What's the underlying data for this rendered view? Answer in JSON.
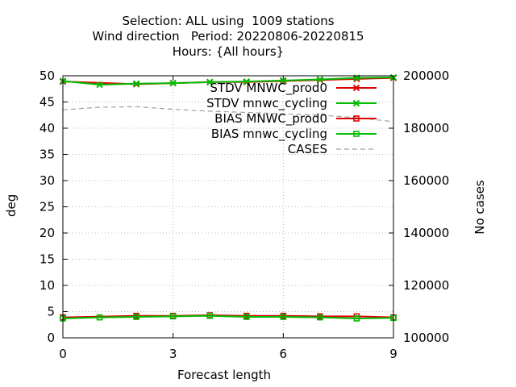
{
  "title_lines": [
    "Selection: ALL using  1009 stations",
    "Wind direction   Period: 20220806-20220815",
    "Hours: {All hours}"
  ],
  "chart_data": {
    "type": "line",
    "xlabel": "Forecast length",
    "ylabel": "deg",
    "y2label": "No cases",
    "xlim": [
      0,
      9
    ],
    "ylim": [
      0,
      50
    ],
    "y2lim": [
      100000,
      200000
    ],
    "xticks": [
      0,
      3,
      6,
      9
    ],
    "yticks": [
      0,
      5,
      10,
      15,
      20,
      25,
      30,
      35,
      40,
      45,
      50
    ],
    "y2ticks": [
      100000,
      120000,
      140000,
      160000,
      180000,
      200000
    ],
    "grid": true,
    "legend_position": "top-right",
    "series": [
      {
        "name": "STDV MNWC_prod0",
        "color": "#dd0000",
        "marker": "x",
        "axis": "y",
        "x": [
          0,
          2,
          3,
          4,
          5,
          6,
          7,
          8,
          9
        ],
        "values": [
          48.9,
          48.4,
          48.6,
          48.8,
          48.8,
          49.0,
          49.2,
          49.4,
          49.6
        ]
      },
      {
        "name": "STDV mnwc_cycling",
        "color": "#00bb00",
        "marker": "x",
        "axis": "y",
        "x": [
          0,
          1,
          2,
          3,
          4,
          5,
          6,
          7,
          8,
          9
        ],
        "values": [
          49.0,
          48.3,
          48.5,
          48.6,
          48.8,
          48.9,
          49.1,
          49.3,
          49.6,
          49.7
        ]
      },
      {
        "name": "BIAS MNWC_prod0",
        "color": "#dd0000",
        "marker": "square",
        "axis": "y",
        "x": [
          0,
          2,
          3,
          4,
          5,
          6,
          7,
          8,
          9
        ],
        "values": [
          3.9,
          4.2,
          4.2,
          4.3,
          4.2,
          4.2,
          4.1,
          4.1,
          3.9
        ]
      },
      {
        "name": "BIAS mnwc_cycling",
        "color": "#00bb00",
        "marker": "square",
        "axis": "y",
        "x": [
          0,
          1,
          2,
          3,
          4,
          5,
          6,
          7,
          8,
          9
        ],
        "values": [
          3.7,
          3.9,
          4.0,
          4.1,
          4.2,
          4.0,
          4.0,
          3.9,
          3.7,
          3.8
        ]
      },
      {
        "name": "CASES",
        "color": "#a0a0a0",
        "marker": "none",
        "dash": true,
        "axis": "y2",
        "x": [
          0,
          1,
          2,
          3,
          4,
          5,
          6,
          7,
          8,
          9
        ],
        "values": [
          187000,
          188000,
          188200,
          187200,
          186500,
          186000,
          185500,
          185000,
          184000,
          182500
        ]
      }
    ]
  }
}
